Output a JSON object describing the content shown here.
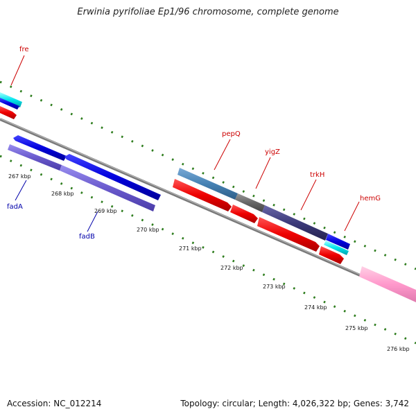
{
  "title": "Erwinia pyrifoliae Ep1/96 chromosome, complete genome",
  "footer": {
    "accession": "Accession: NC_012214",
    "summary": "Topology: circular; Length: 4,026,322 bp; Genes: 3,742"
  },
  "ticks": [
    {
      "label": "267 kbp"
    },
    {
      "label": "268 kbp"
    },
    {
      "label": "269 kbp"
    },
    {
      "label": "270 kbp"
    },
    {
      "label": "271 kbp"
    },
    {
      "label": "272 kbp"
    },
    {
      "label": "273 kbp"
    },
    {
      "label": "274 kbp"
    },
    {
      "label": "275 kbp"
    },
    {
      "label": "276 kbp"
    }
  ],
  "gene_labels": [
    {
      "name": "fre",
      "color": "#cc0000"
    },
    {
      "name": "pepQ",
      "color": "#cc0000"
    },
    {
      "name": "yigZ",
      "color": "#cc0000"
    },
    {
      "name": "trkH",
      "color": "#cc0000"
    },
    {
      "name": "hemG",
      "color": "#cc0000"
    },
    {
      "name": "fadA",
      "color": "#0000aa"
    },
    {
      "name": "fadB",
      "color": "#0000aa"
    }
  ],
  "colors": {
    "tick_dash": "#2e7d1e",
    "backbone": "#888888",
    "red_feature": "#ee0000",
    "blue_feature": "#0000dd",
    "purple_feature": "#6a5acd",
    "steelblue_feature": "#4682b4",
    "gray_feature": "#666666",
    "darkslate_feature": "#3c3a7a",
    "cyan_feature": "#00e5ee",
    "pink_feature": "#ff99cc"
  }
}
